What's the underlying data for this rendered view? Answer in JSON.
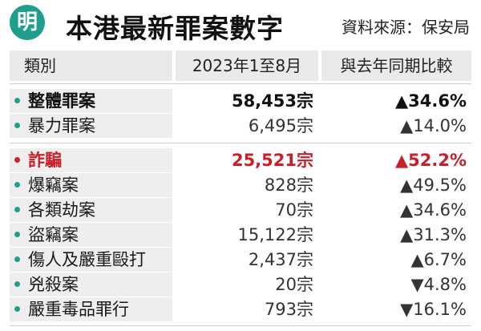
{
  "header": {
    "logo_text": "明",
    "title": "本港最新罪案數字",
    "source": "資料來源：保安局"
  },
  "columns": {
    "category": "類別",
    "period": "2023年1至8月",
    "comparison": "與去年同期比較"
  },
  "colors": {
    "accent": "#1f9e8e",
    "highlight": "#c7202a"
  },
  "rows": [
    {
      "name": "整體罪案",
      "count": "58,453宗",
      "change": "▲34.6%"
    },
    {
      "name": "暴力罪案",
      "count": "6,495宗",
      "change": "▲14.0%"
    },
    {
      "name": "詐騙",
      "count": "25,521宗",
      "change": "▲52.2%"
    },
    {
      "name": "爆竊案",
      "count": "828宗",
      "change": "▲49.5%"
    },
    {
      "name": "各類劫案",
      "count": "70宗",
      "change": "▲34.6%"
    },
    {
      "name": "盜竊案",
      "count": "15,122宗",
      "change": "▲31.3%"
    },
    {
      "name": "傷人及嚴重毆打",
      "count": "2,437宗",
      "change": "▲6.7%"
    },
    {
      "name": "兇殺案",
      "count": "20宗",
      "change": "▼4.8%"
    },
    {
      "name": "嚴重毒品罪行",
      "count": "793宗",
      "change": "▼16.1%"
    }
  ]
}
